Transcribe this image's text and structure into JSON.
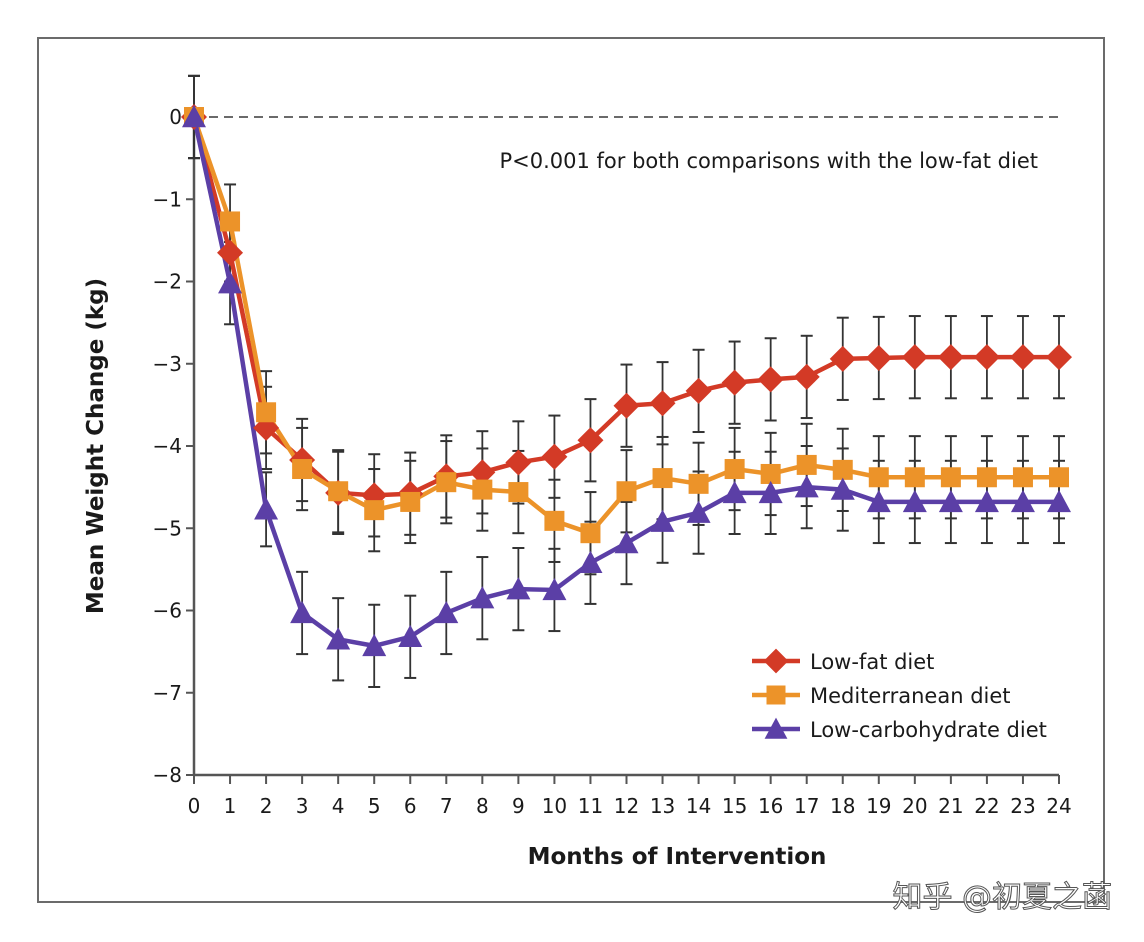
{
  "chart_data": {
    "type": "line",
    "title": "",
    "annotation": "P<0.001 for both comparisons with the low-fat diet",
    "xlabel": "Months of Intervention",
    "ylabel": "Mean Weight Change (kg)",
    "xlim": [
      0,
      24
    ],
    "ylim": [
      -8,
      0
    ],
    "x": [
      0,
      1,
      2,
      3,
      4,
      5,
      6,
      7,
      8,
      9,
      10,
      11,
      12,
      13,
      14,
      15,
      16,
      17,
      18,
      19,
      20,
      21,
      22,
      23,
      24
    ],
    "x_tick_labels": [
      "0",
      "1",
      "2",
      "3",
      "4",
      "5",
      "6",
      "7",
      "8",
      "9",
      "10",
      "11",
      "12",
      "13",
      "14",
      "15",
      "16",
      "17",
      "18",
      "19",
      "20",
      "21",
      "22",
      "23",
      "24"
    ],
    "y_ticks": [
      0,
      -1,
      -2,
      -3,
      -4,
      -5,
      -6,
      -7,
      -8
    ],
    "y_tick_labels": [
      "0",
      "−1",
      "−2",
      "−3",
      "−4",
      "−5",
      "−6",
      "−7",
      "−8"
    ],
    "reference_line": {
      "y": 0,
      "style": "dashed"
    },
    "legend_position": "bottom-right",
    "grid": false,
    "series": [
      {
        "name": "Low-fat diet",
        "marker": "diamond",
        "color": "#d33a26",
        "values": [
          0,
          -1.65,
          -3.78,
          -4.17,
          -4.57,
          -4.6,
          -4.58,
          -4.37,
          -4.32,
          -4.2,
          -4.13,
          -3.93,
          -3.51,
          -3.48,
          -3.33,
          -3.23,
          -3.19,
          -3.16,
          -2.94,
          -2.93,
          -2.92,
          -2.92,
          -2.92,
          -2.92,
          -2.92
        ],
        "error": [
          0.5,
          0.35,
          0.5,
          0.5,
          0.5,
          0.5,
          0.5,
          0.5,
          0.5,
          0.5,
          0.5,
          0.5,
          0.5,
          0.5,
          0.5,
          0.5,
          0.5,
          0.5,
          0.5,
          0.5,
          0.5,
          0.5,
          0.5,
          0.5,
          0.5
        ]
      },
      {
        "name": "Mediterranean diet",
        "marker": "square",
        "color": "#ec9329",
        "values": [
          0,
          -1.27,
          -3.59,
          -4.28,
          -4.55,
          -4.78,
          -4.68,
          -4.44,
          -4.53,
          -4.56,
          -4.91,
          -5.06,
          -4.55,
          -4.39,
          -4.46,
          -4.28,
          -4.34,
          -4.23,
          -4.29,
          -4.38,
          -4.38,
          -4.38,
          -4.38,
          -4.38,
          -4.38
        ],
        "error": [
          0.5,
          0.45,
          0.5,
          0.5,
          0.5,
          0.5,
          0.5,
          0.5,
          0.5,
          0.5,
          0.5,
          0.5,
          0.5,
          0.5,
          0.5,
          0.5,
          0.5,
          0.5,
          0.5,
          0.5,
          0.5,
          0.5,
          0.5,
          0.5,
          0.5
        ]
      },
      {
        "name": "Low-carbohydrate diet",
        "marker": "triangle",
        "color": "#5b3fa6",
        "values": [
          0,
          -2.02,
          -4.77,
          -6.03,
          -6.35,
          -6.43,
          -6.32,
          -6.03,
          -5.85,
          -5.74,
          -5.75,
          -5.42,
          -5.18,
          -4.92,
          -4.81,
          -4.57,
          -4.57,
          -4.5,
          -4.53,
          -4.68,
          -4.68,
          -4.68,
          -4.68,
          -4.68,
          -4.68
        ],
        "error": [
          0.5,
          0.5,
          0.45,
          0.5,
          0.5,
          0.5,
          0.5,
          0.5,
          0.5,
          0.5,
          0.5,
          0.5,
          0.5,
          0.5,
          0.5,
          0.5,
          0.5,
          0.5,
          0.5,
          0.5,
          0.5,
          0.5,
          0.5,
          0.5,
          0.5
        ]
      }
    ]
  },
  "watermark": "知乎 @初夏之菡"
}
